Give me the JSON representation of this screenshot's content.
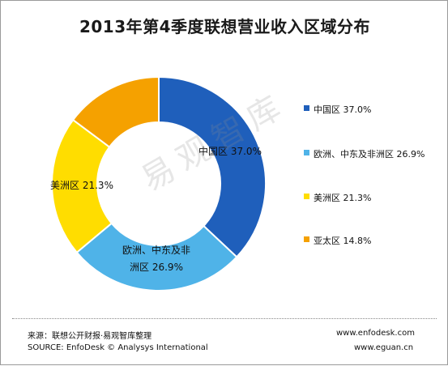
{
  "title": "2013年第4季度联想营业收入区域分布",
  "watermark": "易观智库",
  "chart_data": {
    "type": "pie",
    "title": "2013年第4季度联想营业收入区域分布",
    "categories": [
      "中国区",
      "欧洲、中东及非洲区",
      "美洲区",
      "亚太区"
    ],
    "values": [
      37.0,
      26.9,
      21.3,
      14.8
    ],
    "unit": "%",
    "colors": [
      "#1f5fbb",
      "#4fb3e8",
      "#ffdd00",
      "#f5a100"
    ],
    "donut": true,
    "legend_position": "right",
    "legend": [
      {
        "label": "中国区 37.0%",
        "color": "#1f5fbb"
      },
      {
        "label": "欧洲、中东及非洲区 26.9%",
        "color": "#4fb3e8"
      },
      {
        "label": "美洲区 21.3%",
        "color": "#ffdd00"
      },
      {
        "label": "亚太区 14.8%",
        "color": "#f5a100"
      }
    ],
    "data_labels": [
      {
        "text": "中国区 37.0%",
        "lines": [
          "中国区 37.0%"
        ]
      },
      {
        "text": "欧洲、中东及非洲区 26.9%",
        "lines": [
          "欧洲、中东及非",
          "洲区 26.9%"
        ]
      },
      {
        "text": "美洲区 21.3%",
        "lines": [
          "美洲区 21.3%"
        ]
      },
      {
        "text": "",
        "lines": []
      }
    ]
  },
  "footer": {
    "source_cn": "来源：联想公开财报·易观智库整理",
    "source_en": "SOURCE: EnfoDesk © Analysys International",
    "url1": "www.enfodesk.com",
    "url2": "www.eguan.cn"
  }
}
